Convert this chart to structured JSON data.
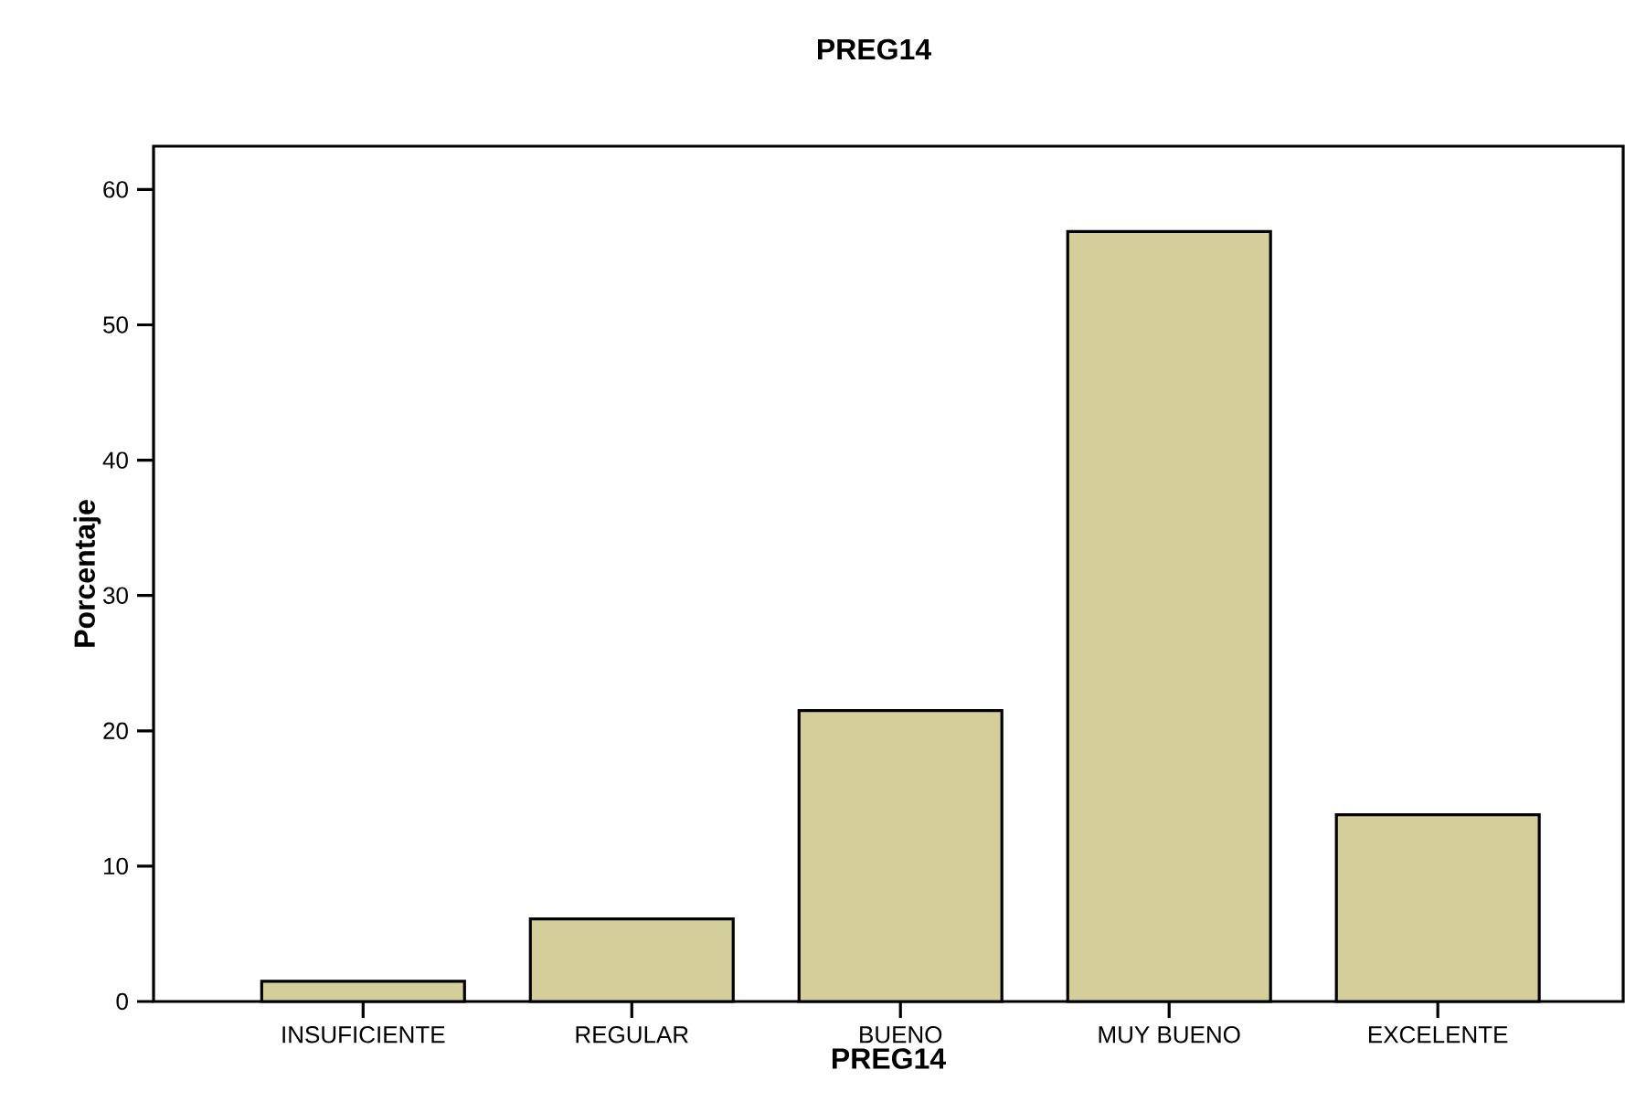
{
  "chart_data": {
    "type": "bar",
    "title": "PREG14",
    "xlabel": "PREG14",
    "ylabel": "Porcentaje",
    "categories": [
      "INSUFICIENTE",
      "REGULAR",
      "BUENO",
      "MUY BUENO",
      "EXCELENTE"
    ],
    "values": [
      1.5,
      6.1,
      21.5,
      56.9,
      13.8
    ],
    "color": "#d3ce9a",
    "ylim": [
      0,
      63.2
    ],
    "yticks": [
      0,
      10,
      20,
      30,
      40,
      50,
      60
    ],
    "grid": false
  }
}
